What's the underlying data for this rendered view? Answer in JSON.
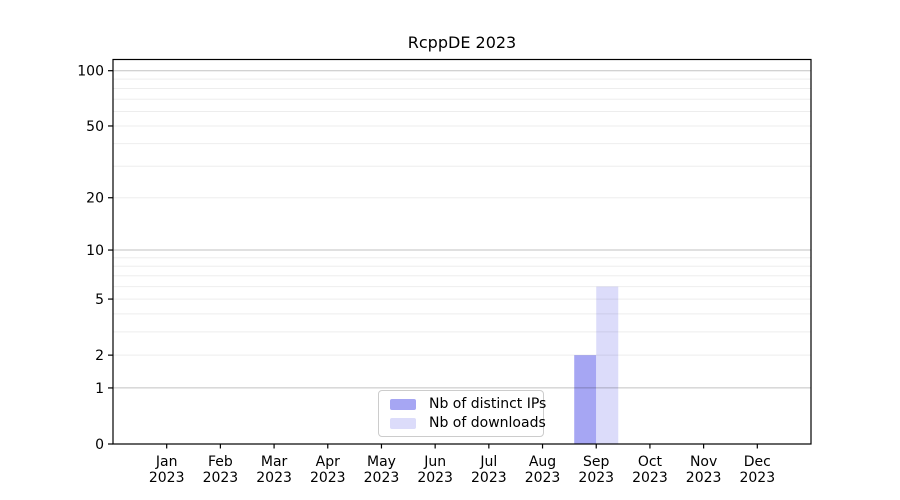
{
  "chart_data": {
    "type": "bar",
    "title": "RcppDE 2023",
    "x_ticks": [
      {
        "month": "Jan",
        "year": "2023"
      },
      {
        "month": "Feb",
        "year": "2023"
      },
      {
        "month": "Mar",
        "year": "2023"
      },
      {
        "month": "Apr",
        "year": "2023"
      },
      {
        "month": "May",
        "year": "2023"
      },
      {
        "month": "Jun",
        "year": "2023"
      },
      {
        "month": "Jul",
        "year": "2023"
      },
      {
        "month": "Aug",
        "year": "2023"
      },
      {
        "month": "Sep",
        "year": "2023"
      },
      {
        "month": "Oct",
        "year": "2023"
      },
      {
        "month": "Nov",
        "year": "2023"
      },
      {
        "month": "Dec",
        "year": "2023"
      }
    ],
    "series": [
      {
        "name": "Nb of distinct IPs",
        "color": "#a6a6f3",
        "values": [
          0,
          0,
          0,
          0,
          0,
          0,
          0,
          0,
          2,
          0,
          0,
          0
        ]
      },
      {
        "name": "Nb of downloads",
        "color": "#dcdcfa",
        "values": [
          0,
          0,
          0,
          0,
          0,
          0,
          0,
          0,
          6,
          0,
          0,
          0
        ]
      }
    ],
    "y_ticks": [
      0,
      1,
      2,
      5,
      10,
      20,
      50,
      100
    ],
    "y_scale": "log1p",
    "ylim": [
      0,
      115
    ],
    "grid": {
      "major": [
        1,
        10,
        100
      ],
      "minor": [
        2,
        3,
        4,
        5,
        6,
        7,
        8,
        9,
        20,
        30,
        40,
        50,
        60,
        70,
        80,
        90
      ]
    },
    "legend": {
      "position": "lower center"
    },
    "xlabel": "",
    "ylabel": ""
  }
}
